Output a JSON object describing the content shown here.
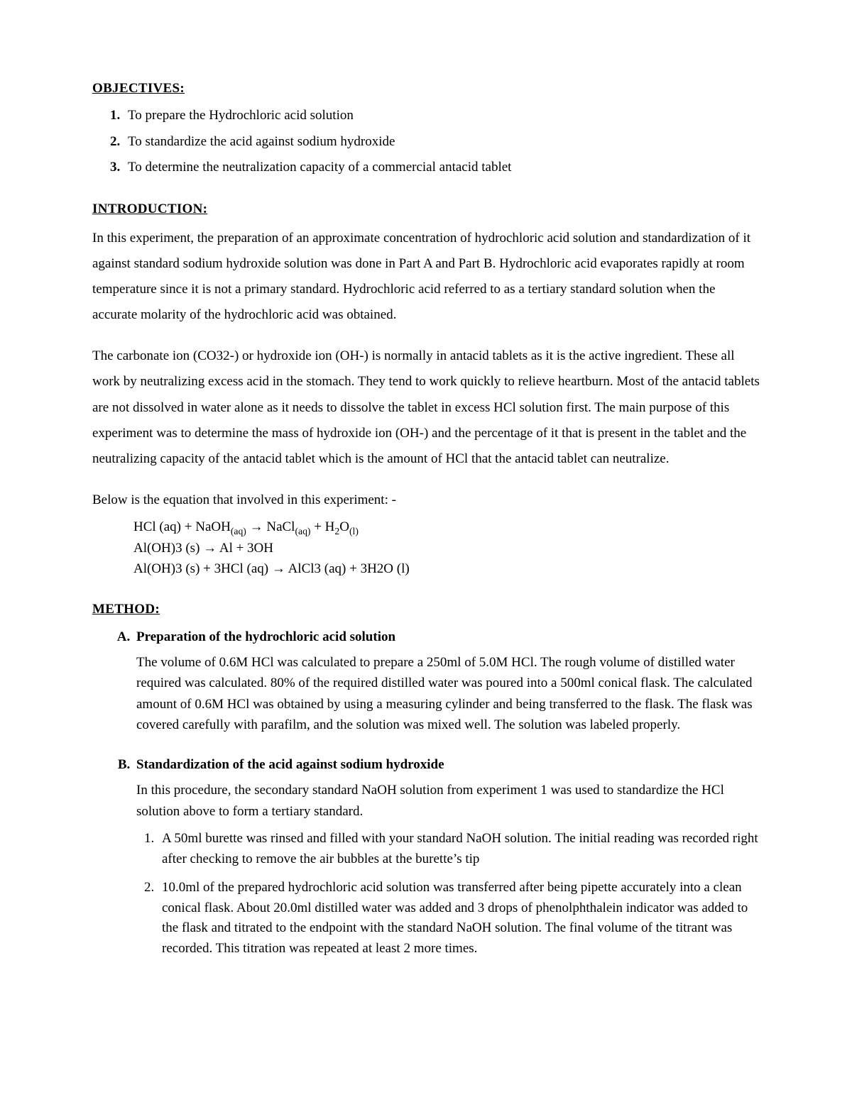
{
  "doc": {
    "background_color": "#ffffff",
    "text_color": "#000000",
    "font_family": "Times New Roman",
    "base_fontsize_pt": 14
  },
  "headings": {
    "objectives": "OBJECTIVES:  ",
    "introduction": "INTRODUCTION:",
    "method": "METHOD:"
  },
  "objectives": [
    "To prepare the Hydrochloric acid solution",
    "To standardize the acid against sodium hydroxide",
    "To determine the neutralization capacity of a commercial antacid tablet"
  ],
  "introduction": {
    "p1": "In this experiment, the preparation of an approximate concentration of hydrochloric acid solution and standardization of it against standard sodium hydroxide solution was done in Part A and Part B. Hydrochloric acid evaporates rapidly at room temperature since it is not a primary standard. Hydrochloric acid referred to as a tertiary standard solution when the accurate molarity of the hydrochloric acid was obtained.",
    "p2": "The carbonate ion (CO32-) or hydroxide ion (OH-) is normally in antacid tablets as it is the active ingredient. These all work by neutralizing excess acid in the stomach. They tend to work quickly to relieve heartburn. Most of the antacid tablets are not dissolved in water alone as it needs to dissolve the tablet in excess HCl solution first. The main purpose of this experiment was to determine the mass of hydroxide ion (OH-) and the percentage of it that is present in the tablet and the neutralizing capacity of the antacid tablet which is the amount of HCl that the antacid tablet can neutralize.",
    "p3": "Below is the equation that involved in this experiment: -"
  },
  "equations": {
    "eq1_lhs_a": "HCl (aq) + NaOH",
    "eq1_sub_a": "(aq)",
    "eq1_arrow": " → ",
    "eq1_rhs_a": "NaCl",
    "eq1_sub_b": "(aq)",
    "eq1_rhs_b": " + H",
    "eq1_sub_c": "2",
    "eq1_rhs_c": "O",
    "eq1_sub_d": "(l)",
    "eq2": "Al(OH)3 (s) → Al + 3OH",
    "eq3": "Al(OH)3 (s) + 3HCl (aq) → AlCl3 (aq) + 3H2O (l)"
  },
  "method": {
    "A": {
      "title": "Preparation of the hydrochloric acid solution",
      "body": "The volume of 0.6M HCl was calculated to prepare a 250ml of 5.0M HCl. The rough volume of distilled water required was calculated. 80% of the required distilled water was poured into a 500ml conical flask. The calculated amount of 0.6M HCl was obtained by using a measuring cylinder and being transferred to the flask. The flask was covered carefully with parafilm, and the solution was mixed well. The solution was labeled properly."
    },
    "B": {
      "title": "Standardization of the acid against sodium hydroxide",
      "body": "In this procedure, the secondary standard NaOH solution from experiment 1 was used to standardize the HCl solution above to form a tertiary standard.",
      "steps": [
        "A 50ml burette was rinsed and filled with your standard NaOH solution. The initial reading was recorded right after checking to remove the air bubbles at the burette’s tip",
        "10.0ml of the prepared hydrochloric acid solution was transferred after being pipette accurately into a clean conical flask. About 20.0ml distilled water was added and 3 drops of phenolphthalein indicator was added to the flask and titrated to the endpoint with the standard NaOH solution. The final volume of the titrant was recorded. This titration was repeated at least 2 more times."
      ]
    }
  }
}
